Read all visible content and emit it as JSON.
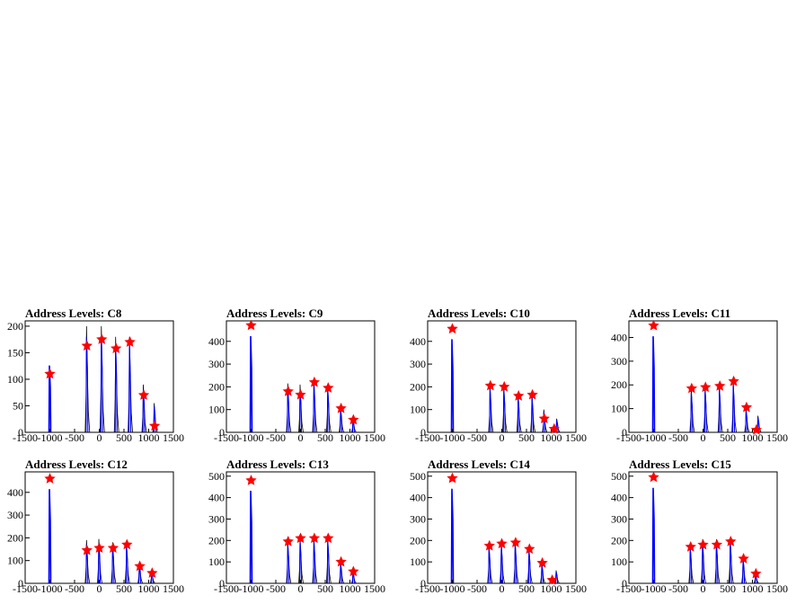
{
  "chart_data": [
    {
      "type": "histogram",
      "title": "Address Levels: C8",
      "xlim": [
        -1500,
        1500
      ],
      "ylim": [
        0,
        210
      ],
      "xticks": [
        -1500,
        -1000,
        -500,
        0,
        500,
        1000,
        1500
      ],
      "yticks": [
        0,
        50,
        100,
        150,
        200
      ],
      "peaks": [
        {
          "x": -1000,
          "y": 110
        },
        {
          "x": -250,
          "y": 163
        },
        {
          "x": 50,
          "y": 175
        },
        {
          "x": 340,
          "y": 158
        },
        {
          "x": 620,
          "y": 170
        },
        {
          "x": 900,
          "y": 70
        },
        {
          "x": 1120,
          "y": 12
        }
      ],
      "bars": [
        {
          "x": -1000,
          "y": 140
        },
        {
          "x": -250,
          "y": 200
        },
        {
          "x": 50,
          "y": 200
        },
        {
          "x": 340,
          "y": 180
        },
        {
          "x": 620,
          "y": 180
        },
        {
          "x": 900,
          "y": 90
        },
        {
          "x": 1120,
          "y": 55
        }
      ]
    },
    {
      "type": "histogram",
      "title": "Address Levels: C9",
      "xlim": [
        -1500,
        1500
      ],
      "ylim": [
        0,
        490
      ],
      "xticks": [
        -1500,
        -1000,
        -500,
        0,
        500,
        1000,
        1500
      ],
      "yticks": [
        0,
        100,
        200,
        300,
        400
      ],
      "peaks": [
        {
          "x": -1000,
          "y": 470
        },
        {
          "x": -250,
          "y": 180
        },
        {
          "x": 0,
          "y": 165
        },
        {
          "x": 280,
          "y": 220
        },
        {
          "x": 560,
          "y": 195
        },
        {
          "x": 820,
          "y": 105
        },
        {
          "x": 1070,
          "y": 55
        }
      ],
      "bars": [
        {
          "x": -1000,
          "y": 470
        },
        {
          "x": -250,
          "y": 215
        },
        {
          "x": 0,
          "y": 210
        },
        {
          "x": 280,
          "y": 235
        },
        {
          "x": 560,
          "y": 205
        },
        {
          "x": 820,
          "y": 110
        },
        {
          "x": 1070,
          "y": 60
        }
      ]
    },
    {
      "type": "histogram",
      "title": "Address Levels: C10",
      "xlim": [
        -1500,
        1500
      ],
      "ylim": [
        0,
        490
      ],
      "xticks": [
        -1500,
        -1000,
        -500,
        0,
        500,
        1000,
        1500
      ],
      "yticks": [
        0,
        100,
        200,
        300,
        400
      ],
      "peaks": [
        {
          "x": -1000,
          "y": 455
        },
        {
          "x": -230,
          "y": 205
        },
        {
          "x": 50,
          "y": 200
        },
        {
          "x": 340,
          "y": 160
        },
        {
          "x": 620,
          "y": 165
        },
        {
          "x": 860,
          "y": 60
        },
        {
          "x": 1060,
          "y": 15
        }
      ],
      "bars": [
        {
          "x": -1000,
          "y": 455
        },
        {
          "x": -230,
          "y": 210
        },
        {
          "x": 50,
          "y": 205
        },
        {
          "x": 340,
          "y": 170
        },
        {
          "x": 620,
          "y": 170
        },
        {
          "x": 860,
          "y": 100
        },
        {
          "x": 1120,
          "y": 60
        }
      ]
    },
    {
      "type": "histogram",
      "title": "Address Levels: C11",
      "xlim": [
        -1500,
        1500
      ],
      "ylim": [
        0,
        470
      ],
      "xticks": [
        -1500,
        -1000,
        -500,
        0,
        500,
        1000,
        1500
      ],
      "yticks": [
        0,
        100,
        200,
        300,
        400
      ],
      "peaks": [
        {
          "x": -1000,
          "y": 450
        },
        {
          "x": -230,
          "y": 185
        },
        {
          "x": 50,
          "y": 190
        },
        {
          "x": 340,
          "y": 195
        },
        {
          "x": 620,
          "y": 215
        },
        {
          "x": 880,
          "y": 105
        },
        {
          "x": 1080,
          "y": 10
        }
      ],
      "bars": [
        {
          "x": -1000,
          "y": 450
        },
        {
          "x": -230,
          "y": 185
        },
        {
          "x": 50,
          "y": 195
        },
        {
          "x": 340,
          "y": 200
        },
        {
          "x": 620,
          "y": 220
        },
        {
          "x": 880,
          "y": 100
        },
        {
          "x": 1120,
          "y": 70
        }
      ]
    },
    {
      "type": "histogram",
      "title": "Address Levels: C12",
      "xlim": [
        -1500,
        1500
      ],
      "ylim": [
        0,
        490
      ],
      "xticks": [
        -1500,
        -1000,
        -500,
        0,
        500,
        1000,
        1500
      ],
      "yticks": [
        0,
        100,
        200,
        300,
        400
      ],
      "peaks": [
        {
          "x": -1000,
          "y": 460
        },
        {
          "x": -250,
          "y": 145
        },
        {
          "x": 0,
          "y": 155
        },
        {
          "x": 280,
          "y": 155
        },
        {
          "x": 560,
          "y": 170
        },
        {
          "x": 820,
          "y": 75
        },
        {
          "x": 1070,
          "y": 45
        }
      ],
      "bars": [
        {
          "x": -1000,
          "y": 460
        },
        {
          "x": -250,
          "y": 190
        },
        {
          "x": 0,
          "y": 195
        },
        {
          "x": 280,
          "y": 180
        },
        {
          "x": 560,
          "y": 180
        },
        {
          "x": 820,
          "y": 90
        },
        {
          "x": 1070,
          "y": 55
        }
      ]
    },
    {
      "type": "histogram",
      "title": "Address Levels: C13",
      "xlim": [
        -1500,
        1500
      ],
      "ylim": [
        0,
        520
      ],
      "xticks": [
        -1500,
        -1000,
        -500,
        0,
        500,
        1000,
        1500
      ],
      "yticks": [
        0,
        100,
        200,
        300,
        400,
        500
      ],
      "peaks": [
        {
          "x": -1000,
          "y": 480
        },
        {
          "x": -250,
          "y": 195
        },
        {
          "x": 0,
          "y": 210
        },
        {
          "x": 280,
          "y": 210
        },
        {
          "x": 560,
          "y": 210
        },
        {
          "x": 820,
          "y": 100
        },
        {
          "x": 1070,
          "y": 55
        }
      ],
      "bars": [
        {
          "x": -1000,
          "y": 480
        },
        {
          "x": -250,
          "y": 200
        },
        {
          "x": 0,
          "y": 215
        },
        {
          "x": 280,
          "y": 215
        },
        {
          "x": 560,
          "y": 215
        },
        {
          "x": 820,
          "y": 100
        },
        {
          "x": 1070,
          "y": 55
        }
      ]
    },
    {
      "type": "histogram",
      "title": "Address Levels: C14",
      "xlim": [
        -1500,
        1500
      ],
      "ylim": [
        0,
        520
      ],
      "xticks": [
        -1500,
        -1000,
        -500,
        0,
        500,
        1000,
        1500
      ],
      "yticks": [
        0,
        100,
        200,
        300,
        400,
        500
      ],
      "peaks": [
        {
          "x": -1000,
          "y": 490
        },
        {
          "x": -250,
          "y": 175
        },
        {
          "x": 0,
          "y": 185
        },
        {
          "x": 280,
          "y": 190
        },
        {
          "x": 560,
          "y": 160
        },
        {
          "x": 820,
          "y": 95
        },
        {
          "x": 1020,
          "y": 15
        }
      ],
      "bars": [
        {
          "x": -1000,
          "y": 490
        },
        {
          "x": -250,
          "y": 180
        },
        {
          "x": 0,
          "y": 190
        },
        {
          "x": 280,
          "y": 200
        },
        {
          "x": 560,
          "y": 165
        },
        {
          "x": 820,
          "y": 95
        },
        {
          "x": 1110,
          "y": 60
        }
      ]
    },
    {
      "type": "histogram",
      "title": "Address Levels: C15",
      "xlim": [
        -1500,
        1500
      ],
      "ylim": [
        0,
        520
      ],
      "xticks": [
        -1500,
        -1000,
        -500,
        0,
        500,
        1000,
        1500
      ],
      "yticks": [
        0,
        100,
        200,
        300,
        400,
        500
      ],
      "peaks": [
        {
          "x": -1000,
          "y": 495
        },
        {
          "x": -250,
          "y": 170
        },
        {
          "x": 0,
          "y": 180
        },
        {
          "x": 280,
          "y": 180
        },
        {
          "x": 560,
          "y": 195
        },
        {
          "x": 820,
          "y": 115
        },
        {
          "x": 1070,
          "y": 45
        }
      ],
      "bars": [
        {
          "x": -1000,
          "y": 495
        },
        {
          "x": -250,
          "y": 180
        },
        {
          "x": 0,
          "y": 205
        },
        {
          "x": 280,
          "y": 205
        },
        {
          "x": 560,
          "y": 210
        },
        {
          "x": 820,
          "y": 120
        },
        {
          "x": 1070,
          "y": 50
        }
      ]
    }
  ],
  "colors": {
    "line": "#0000ff",
    "envelope": "#000000",
    "marker_fill": "#ff0000",
    "marker_stroke": "#ff0000",
    "frame": "#000000"
  }
}
